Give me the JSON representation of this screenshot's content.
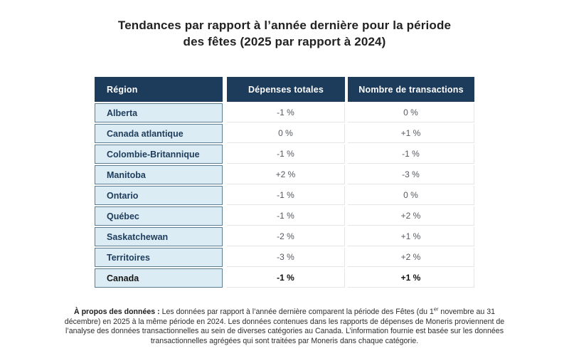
{
  "title": {
    "line1": "Tendances par rapport à l’année dernière pour la période",
    "line2": "des fêtes (2025 par rapport à 2024)"
  },
  "chart_data": {
    "type": "table",
    "title": "Tendances par rapport à l’année dernière pour la période des fêtes (2025 par rapport à 2024)",
    "columns": [
      "Région",
      "Dépenses totales",
      "Nombre de transactions"
    ],
    "rows": [
      [
        "Alberta",
        "-1 %",
        "0 %"
      ],
      [
        "Canada atlantique",
        "0 %",
        "+1 %"
      ],
      [
        "Colombie-Britannique",
        "-1 %",
        "-1 %"
      ],
      [
        "Manitoba",
        "+2 %",
        "-3 %"
      ],
      [
        "Ontario",
        "-1 %",
        "0 %"
      ],
      [
        "Québec",
        "-1 %",
        "+2 %"
      ],
      [
        "Saskatchewan",
        "-2 %",
        "+1 %"
      ],
      [
        "Territoires",
        "-3 %",
        "+2 %"
      ],
      [
        "Canada",
        "-1 %",
        "+1 %"
      ]
    ],
    "total_row_index": 8,
    "legend_position": "none",
    "grid": true
  },
  "footer": {
    "label": "À propos des données :",
    "text_pre": " Les données par rapport à l’année dernière comparent la période des Fêtes (du 1",
    "sup": "er",
    "text_post": " novembre au 31 décembre) en 2025 à la même période en 2024. Les données contenues dans les rapports de dépenses de Moneris proviennent de l’analyse des données transactionnelles au sein de diverses catégories au Canada. L’information fournie est basée sur les données transactionnelles agrégées qui sont traitées par Moneris dans chaque catégorie."
  },
  "colors": {
    "header_bg": "#1d3c5b",
    "header_text": "#ffffff",
    "region_bg": "#dcecf5",
    "region_border": "#5c7c92",
    "value_text": "#55585e",
    "grid_line": "#e5e5e5",
    "title_text": "#222222",
    "footnote_text": "#2e2e2e"
  }
}
